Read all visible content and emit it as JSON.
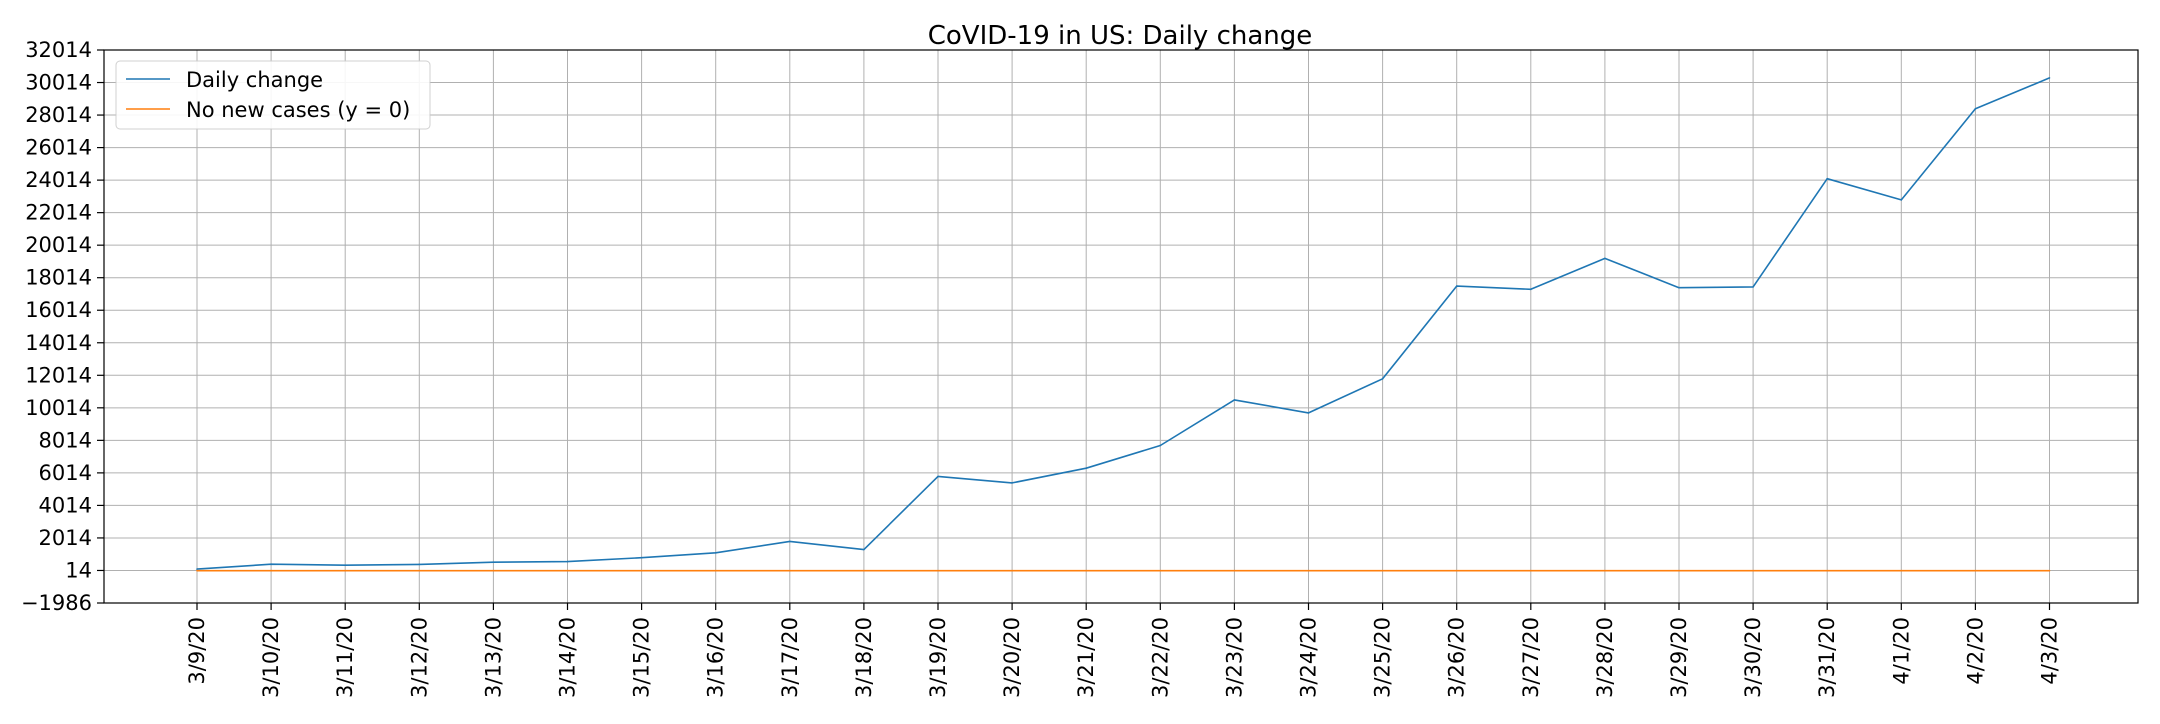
{
  "chart_data": {
    "type": "line",
    "title": "CoVID-19 in US: Daily change",
    "xlabel": "",
    "ylabel": "",
    "categories": [
      "3/9/20",
      "3/10/20",
      "3/11/20",
      "3/12/20",
      "3/13/20",
      "3/14/20",
      "3/15/20",
      "3/16/20",
      "3/17/20",
      "3/18/20",
      "3/19/20",
      "3/20/20",
      "3/21/20",
      "3/22/20",
      "3/23/20",
      "3/24/20",
      "3/25/20",
      "3/26/20",
      "3/27/20",
      "3/28/20",
      "3/29/20",
      "3/30/20",
      "3/31/20",
      "4/1/20",
      "4/2/20",
      "4/3/20"
    ],
    "y_ticks": [
      -1986,
      14,
      2014,
      4014,
      6014,
      8014,
      10014,
      12014,
      14014,
      16014,
      18014,
      20014,
      22014,
      24014,
      26014,
      28014,
      30014,
      32014
    ],
    "y_tick_labels": [
      "−1986",
      "14",
      "2014",
      "4014",
      "6014",
      "8014",
      "10014",
      "12014",
      "14014",
      "16014",
      "18014",
      "20014",
      "22014",
      "24014",
      "26014",
      "28014",
      "30014",
      "32014"
    ],
    "ylim": [
      -1986,
      32014
    ],
    "grid": true,
    "legend_position": "top-left",
    "series": [
      {
        "name": "Daily change",
        "color": "#1f77b4",
        "values": [
          100,
          400,
          340,
          390,
          520,
          560,
          800,
          1100,
          1800,
          1300,
          5800,
          5400,
          6300,
          7700,
          10500,
          9700,
          11800,
          17500,
          17300,
          19200,
          17400,
          17450,
          24100,
          22800,
          28400,
          30300
        ]
      },
      {
        "name": "No new cases (y = 0)",
        "color": "#ff7f0e",
        "values": [
          0,
          0,
          0,
          0,
          0,
          0,
          0,
          0,
          0,
          0,
          0,
          0,
          0,
          0,
          0,
          0,
          0,
          0,
          0,
          0,
          0,
          0,
          0,
          0,
          0,
          0
        ]
      }
    ]
  }
}
